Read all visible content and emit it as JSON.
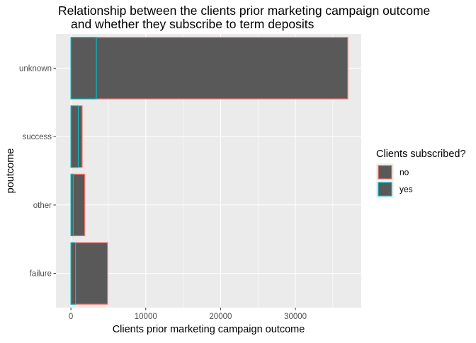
{
  "chart_data": {
    "type": "bar",
    "orientation": "horizontal",
    "stacking": "overlapping",
    "title_lines": [
      "Relationship between the clients prior marketing campaign outcome",
      "and whether they subscribe to term deposits"
    ],
    "xlabel": "Clients prior marketing campaign outcome",
    "ylabel": "poutcome",
    "categories": [
      "failure",
      "other",
      "success",
      "unknown"
    ],
    "series": [
      {
        "name": "no",
        "values": [
          4900,
          1850,
          1500,
          37000
        ]
      },
      {
        "name": "yes",
        "values": [
          620,
          300,
          980,
          3400
        ]
      }
    ],
    "x_ticks": [
      0,
      10000,
      20000,
      30000
    ],
    "x_tick_labels": [
      "0",
      "10000",
      "20000",
      "30000"
    ],
    "xlim": [
      -2000,
      38800
    ],
    "grid": true,
    "legend": {
      "title": "Clients subscribed?",
      "position": "right",
      "entries": [
        "no",
        "yes"
      ]
    },
    "colors": {
      "bar_fill": "#595959",
      "no_outline": "#F8766D",
      "yes_outline": "#00BFC4",
      "panel_bg": "#EBEBEB",
      "grid": "#FFFFFF",
      "text": "#000000",
      "tick_text": "#4D4D4D"
    }
  }
}
